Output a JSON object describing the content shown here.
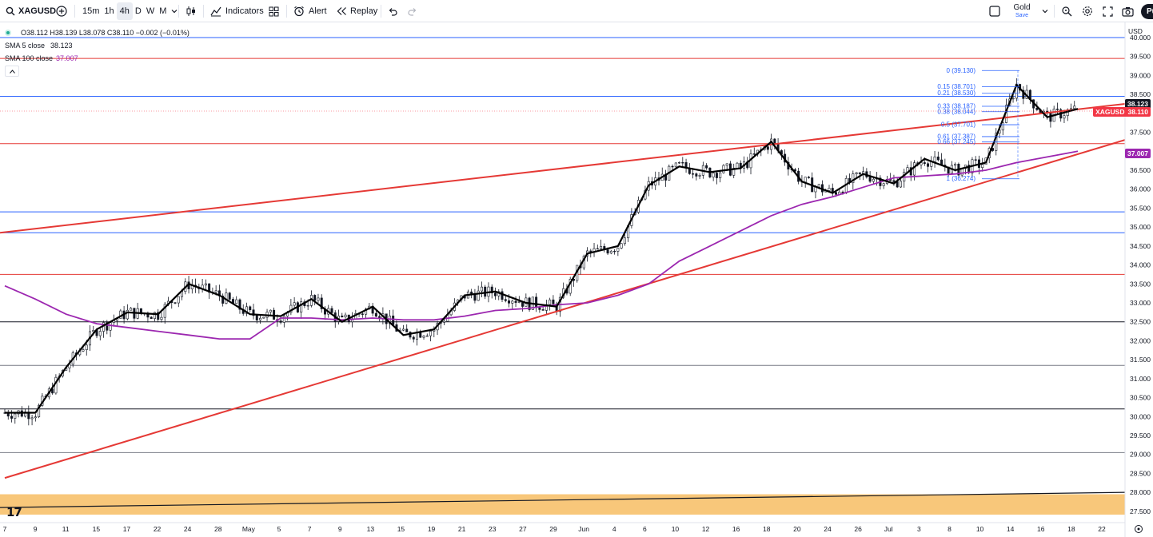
{
  "toolbar": {
    "symbol": "XAGUSD",
    "timeframes": [
      "15m",
      "1h",
      "4h",
      "D",
      "W",
      "M"
    ],
    "active_timeframe": "4h",
    "indicators_label": "Indicators",
    "alert_label": "Alert",
    "replay_label": "Replay",
    "layout_name": "Gold",
    "layout_status": "Save",
    "publish_label": "Pu"
  },
  "legend": {
    "ohlc": "O38.112  H38.139  L38.078  C38.110  −0.002 (−0.01%)",
    "sma5_label": "SMA 5 close",
    "sma5_value": "38.123",
    "sma100_label": "SMA 100 close",
    "sma100_value": "37.007"
  },
  "price_scale": {
    "currency": "USD",
    "labels": [
      "40.000",
      "39.500",
      "39.000",
      "38.500",
      "38.000",
      "37.500",
      "37.000",
      "36.500",
      "36.000",
      "35.500",
      "35.000",
      "34.500",
      "34.000",
      "33.500",
      "33.000",
      "32.500",
      "32.000",
      "31.500",
      "31.000",
      "30.500",
      "30.000",
      "29.500",
      "29.000",
      "28.500",
      "28.000",
      "27.500"
    ]
  },
  "time_scale": {
    "labels": [
      "7",
      "9",
      "11",
      "15",
      "17",
      "22",
      "24",
      "28",
      "May",
      "5",
      "7",
      "9",
      "13",
      "15",
      "19",
      "21",
      "23",
      "27",
      "29",
      "Jun",
      "4",
      "6",
      "10",
      "12",
      "16",
      "18",
      "20",
      "24",
      "26",
      "Jul",
      "3",
      "8",
      "10",
      "14",
      "16",
      "18",
      "22"
    ]
  },
  "price_tags": {
    "sma5": {
      "text": "38.123",
      "color": "#131722"
    },
    "last": {
      "symbol": "XAGUSD",
      "text": "38.110",
      "color": "#f23645"
    },
    "sma100": {
      "text": "37.007",
      "color": "#9c27b0"
    }
  },
  "fib_levels": [
    {
      "label": "0 (39.130)",
      "price": 39.13
    },
    {
      "label": "0.15 (38.701)",
      "price": 38.701
    },
    {
      "label": "0.21 (38.530)",
      "price": 38.53
    },
    {
      "label": "0.33 (38.187)",
      "price": 38.187
    },
    {
      "label": "0.38 (38.044)",
      "price": 38.044
    },
    {
      "label": "0.5 (37.701)",
      "price": 37.701
    },
    {
      "label": "0.61 (37.387)",
      "price": 37.387
    },
    {
      "label": "0.66 (37.245)",
      "price": 37.245
    },
    {
      "label": "1 (36.274)",
      "price": 36.274
    }
  ],
  "horizontal_lines": [
    {
      "price": 40.0,
      "color": "#2962ff"
    },
    {
      "price": 39.45,
      "color": "#e53935"
    },
    {
      "price": 38.45,
      "color": "#2962ff"
    },
    {
      "price": 37.2,
      "color": "#e53935"
    },
    {
      "price": 35.4,
      "color": "#2962ff"
    },
    {
      "price": 34.85,
      "color": "#2962ff"
    },
    {
      "price": 33.75,
      "color": "#e53935"
    },
    {
      "price": 32.5,
      "color": "#131722"
    },
    {
      "price": 31.35,
      "color": "#787b86"
    },
    {
      "price": 30.2,
      "color": "#131722"
    },
    {
      "price": 29.05,
      "color": "#787b86"
    }
  ],
  "colors": {
    "candle": "#131722",
    "sma5": "#000000",
    "sma100": "#9c27b0",
    "trendline": "#e53935",
    "fib": "#2962ff",
    "lower_zone": "#f8c77a"
  },
  "chart_data": {
    "type": "line",
    "title": "XAGUSD",
    "xlabel": "",
    "ylabel": "USD",
    "ylim": [
      27.3,
      40.25
    ],
    "x": [
      "Apr 7",
      "Apr 9",
      "Apr 11",
      "Apr 15",
      "Apr 17",
      "Apr 22",
      "Apr 24",
      "Apr 28",
      "May 1",
      "May 5",
      "May 7",
      "May 9",
      "May 13",
      "May 15",
      "May 19",
      "May 21",
      "May 23",
      "May 27",
      "May 29",
      "Jun 2",
      "Jun 4",
      "Jun 6",
      "Jun 10",
      "Jun 12",
      "Jun 16",
      "Jun 18",
      "Jun 20",
      "Jun 24",
      "Jun 26",
      "Jul 1",
      "Jul 3",
      "Jul 8",
      "Jul 10",
      "Jul 14",
      "Jul 16",
      "Jul 18"
    ],
    "series": [
      {
        "name": "SMA 5 close",
        "values": [
          30.1,
          30.1,
          31.3,
          32.3,
          32.75,
          32.7,
          33.5,
          33.2,
          32.7,
          32.65,
          33.1,
          32.5,
          32.9,
          32.15,
          32.3,
          33.2,
          33.3,
          33.0,
          32.9,
          34.3,
          34.5,
          36.1,
          36.6,
          36.45,
          36.55,
          37.25,
          36.2,
          35.9,
          36.4,
          36.15,
          36.8,
          36.5,
          36.7,
          38.75,
          37.9,
          38.12
        ]
      },
      {
        "name": "SMA 100 close",
        "values": [
          33.45,
          33.1,
          32.7,
          32.45,
          32.35,
          32.25,
          32.15,
          32.05,
          32.05,
          32.6,
          32.6,
          32.55,
          32.6,
          32.55,
          32.55,
          32.65,
          32.8,
          32.85,
          32.95,
          33.0,
          33.2,
          33.5,
          34.1,
          34.5,
          34.9,
          35.3,
          35.6,
          35.8,
          36.05,
          36.3,
          36.35,
          36.4,
          36.5,
          36.7,
          36.85,
          37.0
        ]
      }
    ]
  }
}
